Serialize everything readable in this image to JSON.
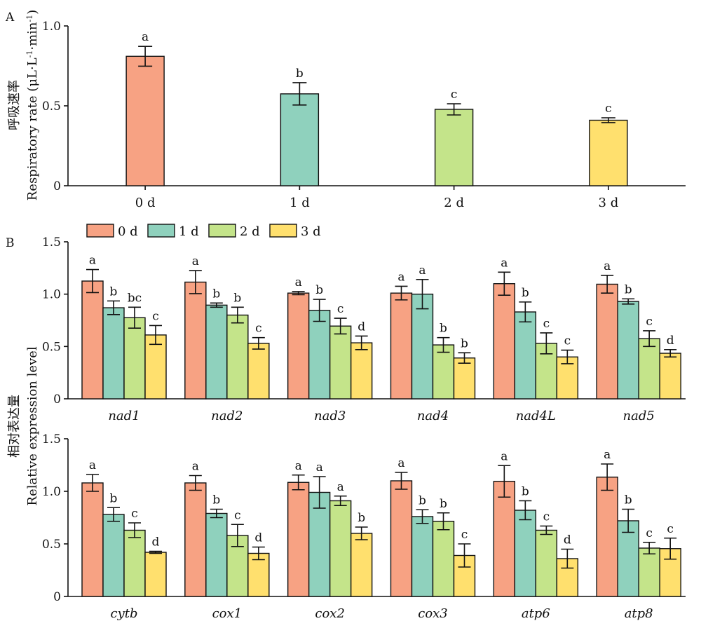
{
  "colors": {
    "0 d": "#F7A283",
    "1 d": "#8FD1BD",
    "2 d": "#C4E48A",
    "3 d": "#FFE06E"
  },
  "chart_data": [
    {
      "type": "bar",
      "panel_label": "A",
      "ylabel": "呼吸速率",
      "ylabel_line2": "Respiratory rate (μL·L",
      "ylabel_sup1": "-1",
      "ylabel_mid": "·min",
      "ylabel_sup2": "-1",
      "ylabel_end": ")",
      "ylim": [
        0,
        1.0
      ],
      "yticks": [
        "0",
        "0.5",
        "1.0"
      ],
      "categories": [
        "0 d",
        "1 d",
        "2 d",
        "3 d"
      ],
      "values": [
        0.81,
        0.575,
        0.478,
        0.41
      ],
      "errors": [
        0.062,
        0.07,
        0.035,
        0.015
      ],
      "letters": [
        "a",
        "b",
        "c",
        "c"
      ]
    },
    {
      "type": "bar",
      "panel_label": "B",
      "ylim": [
        0,
        1.5
      ],
      "yticks": [
        "0",
        "0.5",
        "1.0",
        "1.5"
      ],
      "legend": [
        "0 d",
        "1 d",
        "2 d",
        "3 d"
      ],
      "legend_position": "top-left",
      "categories": [
        "nad1",
        "nad2",
        "nad3",
        "nad4",
        "nad4L",
        "nad5"
      ],
      "series": [
        {
          "name": "0 d",
          "values": [
            1.125,
            1.115,
            1.01,
            1.01,
            1.1,
            1.095
          ],
          "errors": [
            0.11,
            0.11,
            0.015,
            0.065,
            0.11,
            0.085
          ],
          "letters": [
            "a",
            "a",
            "a",
            "a",
            "a",
            "a"
          ]
        },
        {
          "name": "1 d",
          "values": [
            0.87,
            0.895,
            0.845,
            1.0,
            0.83,
            0.93
          ],
          "errors": [
            0.065,
            0.02,
            0.105,
            0.14,
            0.095,
            0.025
          ],
          "letters": [
            "b",
            "b",
            "b",
            "a",
            "b",
            "b"
          ]
        },
        {
          "name": "2 d",
          "values": [
            0.775,
            0.8,
            0.695,
            0.515,
            0.53,
            0.575
          ],
          "errors": [
            0.1,
            0.075,
            0.075,
            0.07,
            0.1,
            0.075
          ],
          "letters": [
            "bc",
            "b",
            "c",
            "b",
            "c",
            "c"
          ]
        },
        {
          "name": "3 d",
          "values": [
            0.61,
            0.53,
            0.535,
            0.39,
            0.4,
            0.435
          ],
          "errors": [
            0.09,
            0.055,
            0.065,
            0.05,
            0.065,
            0.035
          ],
          "letters": [
            "c",
            "c",
            "d",
            "b",
            "c",
            "d"
          ]
        }
      ]
    },
    {
      "type": "bar",
      "ylim": [
        0,
        1.5
      ],
      "yticks": [
        "0",
        "0.5",
        "1.0",
        "1.5"
      ],
      "categories": [
        "cytb",
        "cox1",
        "cox2",
        "cox3",
        "atp6",
        "atp8"
      ],
      "series": [
        {
          "name": "0 d",
          "values": [
            1.08,
            1.08,
            1.085,
            1.1,
            1.095,
            1.135
          ],
          "errors": [
            0.08,
            0.07,
            0.07,
            0.08,
            0.15,
            0.125
          ],
          "letters": [
            "a",
            "a",
            "a",
            "a",
            "a",
            "a"
          ]
        },
        {
          "name": "1 d",
          "values": [
            0.78,
            0.79,
            0.99,
            0.76,
            0.82,
            0.72
          ],
          "errors": [
            0.065,
            0.04,
            0.15,
            0.065,
            0.09,
            0.11
          ],
          "letters": [
            "b",
            "b",
            "a",
            "b",
            "b",
            "b"
          ]
        },
        {
          "name": "2 d",
          "values": [
            0.63,
            0.58,
            0.91,
            0.715,
            0.63,
            0.46
          ],
          "errors": [
            0.07,
            0.105,
            0.045,
            0.08,
            0.04,
            0.055
          ],
          "letters": [
            "c",
            "c",
            "a",
            "b",
            "c",
            "c"
          ]
        },
        {
          "name": "3 d",
          "values": [
            0.42,
            0.41,
            0.6,
            0.39,
            0.36,
            0.455
          ],
          "errors": [
            0.01,
            0.06,
            0.06,
            0.11,
            0.09,
            0.1
          ],
          "letters": [
            "d",
            "d",
            "b",
            "c",
            "d",
            "c"
          ]
        }
      ]
    }
  ],
  "shared_ylabel_B": "相对表达量",
  "shared_ylabel_B_line2": "Relative expression level"
}
